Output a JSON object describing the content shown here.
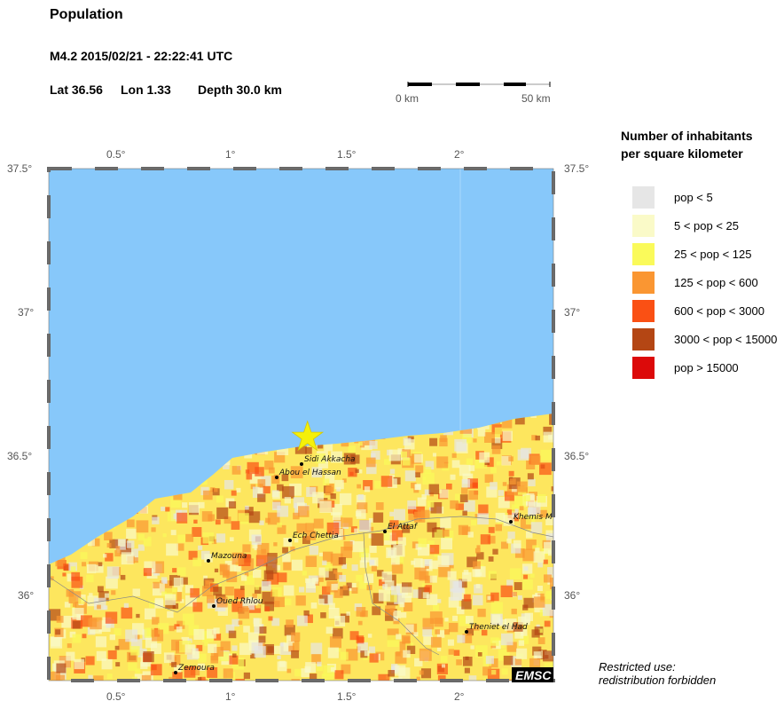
{
  "header": {
    "title": "Population",
    "event": "M4.2  2015/02/21 - 22:22:41 UTC",
    "lat_label": "Lat 36.56",
    "lon_label": "Lon  1.33",
    "depth_label": "Depth  30.0 km"
  },
  "scale_bar": {
    "start": "0 km",
    "end": "50 km"
  },
  "axes": {
    "lon_ticks": [
      "0.5°",
      "1°",
      "1.5°",
      "2°"
    ],
    "lat_ticks": [
      "37.5°",
      "37°",
      "36.5°",
      "36°"
    ]
  },
  "epicenter": {
    "lat": 36.56,
    "lon": 1.33,
    "marker": "star",
    "color": "#f5f00a"
  },
  "cities": [
    "Sidi Akkacha",
    "Abou el Hassan",
    "Ech Chettia",
    "El Attaf",
    "Khemis M",
    "Mazouna",
    "Oued Rhlou",
    "Theniet el Had",
    "Zemoura"
  ],
  "legend": {
    "title_line1": "Number of inhabitants",
    "title_line2": "per square kilometer",
    "items": [
      {
        "label": "pop < 5",
        "color": "#e6e6e6"
      },
      {
        "label": "5 < pop < 25",
        "color": "#fafac8"
      },
      {
        "label": "25 < pop < 125",
        "color": "#fafa5a"
      },
      {
        "label": "125 < pop < 600",
        "color": "#fa9632"
      },
      {
        "label": "600 < pop < 3000",
        "color": "#fa5014"
      },
      {
        "label": "3000 < pop < 15000",
        "color": "#b44614"
      },
      {
        "label": "pop > 15000",
        "color": "#dc0a0a"
      }
    ]
  },
  "colors": {
    "sea": "#87c8fa"
  },
  "watermark": "EMSC",
  "note_line1": "Restricted use:",
  "note_line2": "redistribution forbidden"
}
